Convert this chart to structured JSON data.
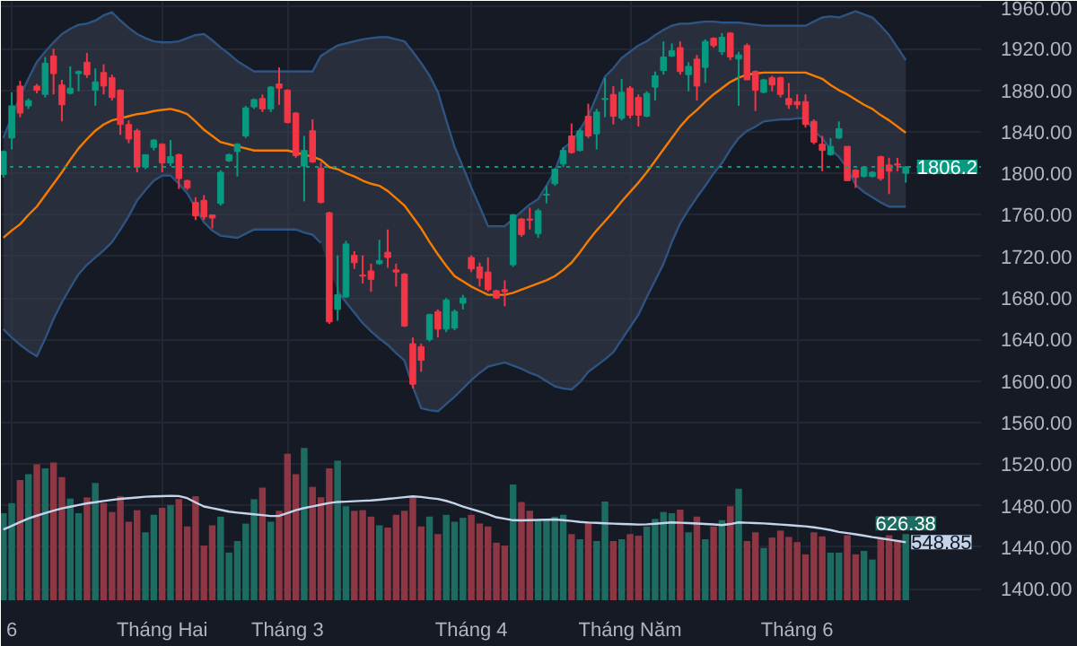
{
  "chart_data": {
    "type": "candlestick",
    "categories": [
      null,
      "6",
      null,
      null,
      null,
      null,
      null,
      null,
      null,
      null,
      null,
      null,
      null,
      null,
      null,
      null,
      null,
      null,
      null,
      "Tháng Hai",
      null,
      null,
      null,
      null,
      null,
      null,
      null,
      null,
      null,
      null,
      null,
      null,
      null,
      null,
      "Tháng 3",
      null,
      null,
      null,
      null,
      null,
      null,
      null,
      null,
      null,
      null,
      null,
      null,
      null,
      null,
      null,
      null,
      null,
      null,
      null,
      null,
      null,
      "Tháng 4",
      null,
      null,
      null,
      null,
      null,
      null,
      null,
      null,
      null,
      null,
      null,
      null,
      null,
      null,
      null,
      null,
      null,
      null,
      "Tháng Năm",
      null,
      null,
      null,
      null,
      null,
      null,
      null,
      null,
      null,
      null,
      null,
      null,
      null,
      null,
      null,
      null,
      null,
      null,
      null,
      "Tháng 6",
      null,
      null,
      null,
      null,
      null,
      null,
      null,
      null,
      null,
      null,
      null,
      null,
      null
    ],
    "ohlc": [
      [
        1799,
        1822,
        1796,
        1821
      ],
      [
        1834,
        1878,
        1823,
        1865
      ],
      [
        1884,
        1889,
        1854,
        1858
      ],
      [
        1865,
        1872,
        1862,
        1870
      ],
      [
        1884,
        1886,
        1877,
        1880
      ],
      [
        1876,
        1912,
        1873,
        1906
      ],
      [
        1913,
        1920,
        1876,
        1896
      ],
      [
        1885,
        1890,
        1850,
        1866
      ],
      [
        1877,
        1903,
        1876,
        1882
      ],
      [
        1896,
        1899,
        1879,
        1898
      ],
      [
        1907,
        1916,
        1892,
        1895
      ],
      [
        1880,
        1901,
        1865,
        1888
      ],
      [
        1897,
        1905,
        1876,
        1884
      ],
      [
        1892,
        1895,
        1870,
        1873
      ],
      [
        1880,
        1881,
        1837,
        1847
      ],
      [
        1847,
        1851,
        1829,
        1833
      ],
      [
        1841,
        1843,
        1801,
        1806
      ],
      [
        1806,
        1818,
        1804,
        1818
      ],
      [
        1825,
        1833,
        1822,
        1832
      ],
      [
        1828,
        1829,
        1801,
        1810
      ],
      [
        1810,
        1832,
        1807,
        1816
      ],
      [
        1818,
        1819,
        1785,
        1795
      ],
      [
        1793,
        1794,
        1784,
        1786
      ],
      [
        1772,
        1777,
        1755,
        1759
      ],
      [
        1774,
        1779,
        1755,
        1758
      ],
      [
        1760,
        1760,
        1747,
        1757
      ],
      [
        1771,
        1803,
        1769,
        1801
      ],
      [
        1812,
        1819,
        1811,
        1818
      ],
      [
        1821,
        1829,
        1797,
        1828
      ],
      [
        1836,
        1865,
        1834,
        1863
      ],
      [
        1864,
        1872,
        1862,
        1871
      ],
      [
        1872,
        1876,
        1859,
        1862
      ],
      [
        1862,
        1884,
        1859,
        1883
      ],
      [
        1886,
        1902,
        1866,
        1882
      ],
      [
        1880,
        1881,
        1848,
        1849
      ],
      [
        1858,
        1859,
        1815,
        1817
      ],
      [
        1807,
        1836,
        1773,
        1822
      ],
      [
        1841,
        1852,
        1810,
        1811
      ],
      [
        1805,
        1811,
        1771,
        1772
      ],
      [
        1762,
        1763,
        1655,
        1657
      ],
      [
        1669,
        1721,
        1658,
        1683
      ],
      [
        1681,
        1735,
        1680,
        1732
      ],
      [
        1721,
        1725,
        1708,
        1714
      ],
      [
        1702,
        1721,
        1694,
        1701
      ],
      [
        1706,
        1713,
        1686,
        1698
      ],
      [
        1713,
        1736,
        1712,
        1716
      ],
      [
        1724,
        1746,
        1709,
        1719
      ],
      [
        1707,
        1713,
        1691,
        1705
      ],
      [
        1703,
        1704,
        1652,
        1653
      ],
      [
        1636,
        1642,
        1593,
        1597
      ],
      [
        1633,
        1636,
        1609,
        1620
      ],
      [
        1640,
        1665,
        1638,
        1664
      ],
      [
        1667,
        1669,
        1642,
        1650
      ],
      [
        1650,
        1680,
        1647,
        1678
      ],
      [
        1651,
        1669,
        1649,
        1667
      ],
      [
        1675,
        1683,
        1669,
        1680
      ],
      [
        1719,
        1721,
        1705,
        1708
      ],
      [
        1710,
        1714,
        1691,
        1699
      ],
      [
        1705,
        1719,
        1686,
        1688
      ],
      [
        1687,
        1688,
        1679,
        1680
      ],
      [
        1688,
        1697,
        1672,
        1686
      ],
      [
        1712,
        1761,
        1710,
        1760
      ],
      [
        1756,
        1757,
        1739,
        1741
      ],
      [
        1756,
        1767,
        1746,
        1755
      ],
      [
        1742,
        1766,
        1738,
        1764
      ],
      [
        1779,
        1788,
        1771,
        1780
      ],
      [
        1790,
        1805,
        1788,
        1804
      ],
      [
        1809,
        1825,
        1806,
        1822
      ],
      [
        1836,
        1848,
        1819,
        1820
      ],
      [
        1822,
        1843,
        1821,
        1841
      ],
      [
        1855,
        1867,
        1834,
        1836
      ],
      [
        1838,
        1862,
        1823,
        1859
      ],
      [
        1871,
        1892,
        1854,
        1872
      ],
      [
        1876,
        1884,
        1847,
        1855
      ],
      [
        1853,
        1891,
        1851,
        1878
      ],
      [
        1882,
        1884,
        1853,
        1856
      ],
      [
        1873,
        1876,
        1845,
        1856
      ],
      [
        1855,
        1879,
        1854,
        1877
      ],
      [
        1883,
        1898,
        1870,
        1894
      ],
      [
        1899,
        1927,
        1895,
        1912
      ],
      [
        1913,
        1925,
        1912,
        1918
      ],
      [
        1921,
        1927,
        1895,
        1898
      ],
      [
        1895,
        1907,
        1879,
        1903
      ],
      [
        1910,
        1914,
        1870,
        1884
      ],
      [
        1902,
        1929,
        1887,
        1927
      ],
      [
        1930,
        1931,
        1921,
        1923
      ],
      [
        1917,
        1935,
        1914,
        1931
      ],
      [
        1935,
        1936,
        1909,
        1912
      ],
      [
        1910,
        1917,
        1865,
        1914
      ],
      [
        1923,
        1925,
        1890,
        1890
      ],
      [
        1898,
        1899,
        1860,
        1880
      ],
      [
        1878,
        1891,
        1877,
        1890
      ],
      [
        1892,
        1894,
        1879,
        1885
      ],
      [
        1892,
        1893,
        1873,
        1876
      ],
      [
        1872,
        1887,
        1862,
        1866
      ],
      [
        1869,
        1876,
        1862,
        1866
      ],
      [
        1869,
        1876,
        1844,
        1847
      ],
      [
        1850,
        1852,
        1828,
        1830
      ],
      [
        1828,
        1836,
        1802,
        1822
      ],
      [
        1818,
        1834,
        1817,
        1826
      ],
      [
        1834,
        1850,
        1833,
        1843
      ],
      [
        1826,
        1826,
        1793,
        1793
      ],
      [
        1803,
        1804,
        1786,
        1796
      ],
      [
        1797,
        1807,
        1796,
        1806
      ],
      [
        1797,
        1802,
        1796,
        1801
      ],
      [
        1816,
        1817,
        1793,
        1795
      ],
      [
        1808,
        1815,
        1780,
        1802
      ],
      [
        1809,
        1815,
        1802,
        1808
      ],
      [
        1800,
        1807,
        1791,
        1806.2
      ]
    ],
    "colors": [
      "#089981",
      "#089981",
      "#f23645",
      "#089981",
      "#f23645",
      "#089981",
      "#f23645",
      "#f23645",
      "#089981",
      "#089981",
      "#f23645",
      "#089981",
      "#f23645",
      "#f23645",
      "#f23645",
      "#f23645",
      "#f23645",
      "#089981",
      "#089981",
      "#f23645",
      "#089981",
      "#f23645",
      "#f23645",
      "#f23645",
      "#f23645",
      "#f23645",
      "#089981",
      "#089981",
      "#089981",
      "#089981",
      "#089981",
      "#f23645",
      "#089981",
      "#f23645",
      "#f23645",
      "#f23645",
      "#089981",
      "#f23645",
      "#f23645",
      "#f23645",
      "#089981",
      "#089981",
      "#f23645",
      "#f23645",
      "#f23645",
      "#089981",
      "#f23645",
      "#f23645",
      "#f23645",
      "#f23645",
      "#f23645",
      "#089981",
      "#f23645",
      "#089981",
      "#089981",
      "#089981",
      "#f23645",
      "#f23645",
      "#f23645",
      "#f23645",
      "#f23645",
      "#089981",
      "#f23645",
      "#f23645",
      "#089981",
      "#089981",
      "#089981",
      "#089981",
      "#f23645",
      "#089981",
      "#f23645",
      "#089981",
      "#089981",
      "#f23645",
      "#089981",
      "#f23645",
      "#f23645",
      "#089981",
      "#089981",
      "#089981",
      "#089981",
      "#f23645",
      "#089981",
      "#f23645",
      "#089981",
      "#f23645",
      "#089981",
      "#f23645",
      "#089981",
      "#f23645",
      "#f23645",
      "#089981",
      "#f23645",
      "#f23645",
      "#f23645",
      "#f23645",
      "#f23645",
      "#f23645",
      "#f23645",
      "#089981",
      "#089981",
      "#f23645",
      "#f23645",
      "#089981",
      "#089981",
      "#f23645",
      "#f23645",
      "#f23645",
      "#089981"
    ],
    "ylim": [
      1389,
      1966
    ],
    "yticks": [
      {
        "value": 1400,
        "label": "1400.00"
      },
      {
        "value": 1440,
        "label": "1440.00"
      },
      {
        "value": 1480,
        "label": "1480.00"
      },
      {
        "value": 1520,
        "label": "1520.00"
      },
      {
        "value": 1560,
        "label": "1560.00"
      },
      {
        "value": 1600,
        "label": "1600.00"
      },
      {
        "value": 1640,
        "label": "1640.00"
      },
      {
        "value": 1680,
        "label": "1680.00"
      },
      {
        "value": 1720,
        "label": "1720.00"
      },
      {
        "value": 1760,
        "label": "1760.00"
      },
      {
        "value": 1800,
        "label": "1800.00"
      },
      {
        "value": 1840,
        "label": "1840.00"
      },
      {
        "value": 1880,
        "label": "1880.00"
      },
      {
        "value": 1920,
        "label": "1920.00"
      },
      {
        "value": 1960,
        "label": "1960.00"
      }
    ],
    "y2lim": [
      0,
      5670
    ],
    "grid": true,
    "series": [
      {
        "type": "bar",
        "axis": "y2",
        "values": [
          824,
          918,
          1137,
          1192,
          1286,
          1247,
          1302,
          1165,
          962,
          824,
          973,
          1110,
          918,
          835,
          984,
          742,
          852,
          643,
          808,
          874,
          901,
          956,
          698,
          984,
          517,
          709,
          791,
          451,
          560,
          725,
          956,
          1066,
          742,
          846,
          1385,
          1192,
          1440,
          1072,
          973,
          1247,
          1319,
          890,
          846,
          852,
          791,
          709,
          687,
          808,
          846,
          973,
          698,
          791,
          626,
          808,
          742,
          780,
          808,
          725,
          698,
          544,
          517,
          1094,
          929,
          846,
          764,
          764,
          791,
          808,
          626,
          577,
          742,
          560,
          934,
          560,
          577,
          626,
          610,
          698,
          769,
          835,
          824,
          857,
          643,
          791,
          577,
          698,
          758,
          890,
          1055,
          560,
          643,
          495,
          593,
          659,
          599,
          550,
          434,
          643,
          604,
          451,
          451,
          615,
          434,
          467,
          385,
          588,
          615,
          571,
          626.38
        ],
        "colors": [
          "#1d6b61",
          "#1d6b61",
          "#8c3743",
          "#1d6b61",
          "#8c3743",
          "#1d6b61",
          "#8c3743",
          "#8c3743",
          "#1d6b61",
          "#1d6b61",
          "#8c3743",
          "#1d6b61",
          "#8c3743",
          "#8c3743",
          "#8c3743",
          "#8c3743",
          "#8c3743",
          "#1d6b61",
          "#1d6b61",
          "#8c3743",
          "#1d6b61",
          "#8c3743",
          "#8c3743",
          "#8c3743",
          "#8c3743",
          "#8c3743",
          "#1d6b61",
          "#1d6b61",
          "#1d6b61",
          "#1d6b61",
          "#1d6b61",
          "#8c3743",
          "#1d6b61",
          "#8c3743",
          "#8c3743",
          "#8c3743",
          "#1d6b61",
          "#8c3743",
          "#8c3743",
          "#8c3743",
          "#1d6b61",
          "#1d6b61",
          "#8c3743",
          "#8c3743",
          "#8c3743",
          "#1d6b61",
          "#8c3743",
          "#8c3743",
          "#8c3743",
          "#8c3743",
          "#8c3743",
          "#1d6b61",
          "#8c3743",
          "#1d6b61",
          "#1d6b61",
          "#1d6b61",
          "#8c3743",
          "#8c3743",
          "#8c3743",
          "#8c3743",
          "#8c3743",
          "#1d6b61",
          "#8c3743",
          "#8c3743",
          "#1d6b61",
          "#1d6b61",
          "#1d6b61",
          "#1d6b61",
          "#8c3743",
          "#1d6b61",
          "#8c3743",
          "#1d6b61",
          "#1d6b61",
          "#8c3743",
          "#1d6b61",
          "#8c3743",
          "#8c3743",
          "#1d6b61",
          "#1d6b61",
          "#1d6b61",
          "#1d6b61",
          "#8c3743",
          "#1d6b61",
          "#8c3743",
          "#1d6b61",
          "#8c3743",
          "#1d6b61",
          "#8c3743",
          "#1d6b61",
          "#8c3743",
          "#8c3743",
          "#1d6b61",
          "#8c3743",
          "#8c3743",
          "#8c3743",
          "#8c3743",
          "#8c3743",
          "#8c3743",
          "#8c3743",
          "#1d6b61",
          "#1d6b61",
          "#8c3743",
          "#8c3743",
          "#1d6b61",
          "#1d6b61",
          "#8c3743",
          "#8c3743",
          "#8c3743",
          "#1d6b61"
        ],
        "value_labels": [
          null,
          null,
          null,
          null,
          null,
          null,
          null,
          null,
          null,
          null,
          null,
          null,
          null,
          null,
          null,
          null,
          null,
          null,
          null,
          null,
          null,
          null,
          null,
          null,
          null,
          null,
          null,
          null,
          null,
          null,
          null,
          null,
          null,
          null,
          null,
          null,
          null,
          null,
          null,
          null,
          null,
          null,
          null,
          null,
          null,
          null,
          null,
          null,
          null,
          null,
          null,
          null,
          null,
          null,
          null,
          null,
          null,
          null,
          null,
          null,
          null,
          null,
          null,
          null,
          null,
          null,
          null,
          null,
          null,
          null,
          null,
          null,
          null,
          null,
          null,
          null,
          null,
          null,
          null,
          null,
          null,
          null,
          null,
          null,
          null,
          null,
          null,
          null,
          null,
          null,
          null,
          null,
          null,
          null,
          null,
          null,
          null,
          null,
          null,
          null,
          null,
          null,
          null,
          null,
          null,
          null,
          null,
          null,
          "626.38"
        ]
      },
      {
        "type": "line",
        "axis": "y2",
        "color": "#c3d3ea",
        "values": [
          670,
          704,
          739,
          773,
          800,
          824,
          848,
          869,
          885,
          901,
          917,
          927,
          939,
          950,
          959,
          966,
          972,
          979,
          982,
          985,
          988,
          986,
          966,
          925,
          887,
          871,
          855,
          838,
          829,
          821,
          813,
          805,
          797,
          798,
          825,
          852,
          872,
          888,
          904,
          920,
          930,
          933,
          937,
          941,
          944,
          951,
          959,
          967,
          975,
          983,
          977,
          967,
          958,
          940,
          915,
          886,
          863,
          839,
          814,
          785,
          771,
          757,
          755,
          757,
          760,
          762,
          764,
          758,
          750,
          741,
          735,
          732,
          728,
          725,
          722,
          719,
          716,
          718,
          724,
          730,
          736,
          733,
          730,
          726,
          722,
          717,
          711,
          721,
          736,
          733,
          730,
          727,
          722,
          716,
          711,
          705,
          699,
          690,
          678,
          664,
          646,
          636,
          624,
          611,
          597,
          586,
          574,
          561,
          548.85
        ],
        "value_labels": [
          null,
          null,
          null,
          null,
          null,
          null,
          null,
          null,
          null,
          null,
          null,
          null,
          null,
          null,
          null,
          null,
          null,
          null,
          null,
          null,
          null,
          null,
          null,
          null,
          null,
          null,
          null,
          null,
          null,
          null,
          null,
          null,
          null,
          null,
          null,
          null,
          null,
          null,
          null,
          null,
          null,
          null,
          null,
          null,
          null,
          null,
          null,
          null,
          null,
          null,
          null,
          null,
          null,
          null,
          null,
          null,
          null,
          null,
          null,
          null,
          null,
          null,
          null,
          null,
          null,
          null,
          null,
          null,
          null,
          null,
          null,
          null,
          null,
          null,
          null,
          null,
          null,
          null,
          null,
          null,
          null,
          null,
          null,
          null,
          null,
          null,
          null,
          null,
          null,
          null,
          null,
          null,
          null,
          null,
          null,
          null,
          null,
          null,
          null,
          null,
          null,
          null,
          null,
          null,
          null,
          null,
          null,
          null,
          "548.85"
        ]
      },
      {
        "type": "line",
        "color": "#2a5c94",
        "values": [
          1834,
          1854,
          1874,
          1891,
          1907,
          1917,
          1926,
          1934,
          1939,
          1943,
          1944,
          1947,
          1952,
          1955,
          1947,
          1940,
          1934,
          1930,
          1927,
          1926,
          1926,
          1927,
          1930,
          1933,
          1934,
          1928,
          1921,
          1915,
          1908,
          1903,
          1898,
          1898,
          1898,
          1898,
          1898,
          1898,
          1898,
          1898,
          1913,
          1918,
          1923,
          1925,
          1927,
          1929,
          1930,
          1931,
          1931,
          1929,
          1927,
          1917,
          1906,
          1894,
          1878,
          1851,
          1825,
          1806,
          1786,
          1768,
          1749,
          1749,
          1749,
          1756,
          1763,
          1770,
          1775,
          1788,
          1802,
          1824,
          1830,
          1842,
          1855,
          1874,
          1893,
          1901,
          1911,
          1917,
          1923,
          1927,
          1933,
          1938,
          1942,
          1944,
          1944,
          1945,
          1946,
          1946,
          1945,
          1945,
          1945,
          1944,
          1943,
          1942,
          1942,
          1942,
          1942,
          1942,
          1942,
          1946,
          1950,
          1951,
          1950,
          1953,
          1956,
          1953,
          1950,
          1942,
          1933,
          1921,
          1909
        ]
      },
      {
        "type": "line",
        "color": "#2a5c94",
        "values": [
          1650,
          1642,
          1635,
          1629,
          1624,
          1641,
          1660,
          1676,
          1690,
          1703,
          1712,
          1719,
          1726,
          1734,
          1746,
          1759,
          1774,
          1784,
          1793,
          1798,
          1798,
          1790,
          1781,
          1767,
          1753,
          1745,
          1740,
          1739,
          1738,
          1742,
          1746,
          1746,
          1746,
          1746,
          1746,
          1746,
          1743,
          1741,
          1733,
          null,
          1687,
          1676,
          1666,
          1656,
          1648,
          1641,
          1635,
          1627,
          1620,
          1595,
          1574,
          1572,
          1571,
          1578,
          1585,
          1593,
          1601,
          1608,
          1614,
          1616,
          1618,
          1615,
          1612,
          1608,
          1605,
          1600,
          1595,
          1593,
          1592,
          1599,
          1609,
          1615,
          1621,
          1628,
          1640,
          1652,
          1664,
          1681,
          1697,
          1713,
          1734,
          1752,
          1765,
          1777,
          1788,
          1800,
          1810,
          1823,
          1834,
          1841,
          1845,
          1850,
          1851,
          1852,
          1852,
          1853,
          1853,
          1841,
          1834,
          1823,
          1816,
          1805,
          1789,
          1782,
          1777,
          1772,
          1768,
          1768,
          1768
        ]
      },
      {
        "type": "line",
        "color": "#f57c00",
        "values": [
          1738,
          1745,
          1751,
          1760,
          1768,
          1779,
          1790,
          1801,
          1813,
          1824,
          1833,
          1841,
          1847,
          1851,
          1853,
          1855,
          1857,
          1858,
          1860,
          1861,
          1862,
          1860,
          1857,
          1850,
          1842,
          1836,
          1830,
          1828,
          1826,
          1824,
          1822,
          1822,
          1822,
          1822,
          1822,
          1820,
          1818,
          1816,
          1813,
          1806,
          1804,
          1800,
          1797,
          1793,
          1790,
          1788,
          1783,
          1776,
          1769,
          1758,
          1747,
          1734,
          1722,
          1711,
          1701,
          1696,
          1691,
          1687,
          1683,
          1683,
          1683,
          1685,
          1688,
          1691,
          1694,
          1697,
          1701,
          1707,
          1714,
          1724,
          1735,
          1745,
          1754,
          1763,
          1773,
          1782,
          1791,
          1801,
          1812,
          1823,
          1834,
          1845,
          1854,
          1861,
          1869,
          1876,
          1882,
          1888,
          1892,
          1895,
          1896,
          1897,
          1897,
          1897,
          1897,
          1897,
          1897,
          1894,
          1891,
          1885,
          1880,
          1876,
          1871,
          1866,
          1862,
          1856,
          1851,
          1845,
          1839
        ],
        "upper": [
          1834,
          1854,
          1874,
          1891,
          1907,
          1917,
          1926,
          1934,
          1939,
          1943,
          1944,
          1947,
          1952,
          1955,
          1947,
          1940,
          1934,
          1930,
          1927,
          1926,
          1926,
          1927,
          1930,
          1933,
          1934,
          1928,
          1921,
          1915,
          1908,
          1903,
          1898,
          1898,
          1898,
          1898,
          1898,
          1898,
          1898,
          1898,
          1913,
          1918,
          1923,
          1925,
          1927,
          1929,
          1930,
          1931,
          1931,
          1929,
          1927,
          1917,
          1906,
          1894,
          1878,
          1851,
          1825,
          1806,
          1786,
          1768,
          1749,
          1749,
          1749,
          1756,
          1763,
          1770,
          1775,
          1788,
          1802,
          1824,
          1830,
          1842,
          1855,
          1874,
          1893,
          1901,
          1911,
          1917,
          1923,
          1927,
          1933,
          1938,
          1942,
          1944,
          1944,
          1945,
          1946,
          1946,
          1945,
          1945,
          1945,
          1944,
          1943,
          1942,
          1942,
          1942,
          1942,
          1942,
          1942,
          1946,
          1950,
          1951,
          1950,
          1953,
          1956,
          1953,
          1950,
          1942,
          1933,
          1921,
          1909
        ],
        "lower": [
          1650,
          1642,
          1635,
          1629,
          1624,
          1641,
          1660,
          1676,
          1690,
          1703,
          1712,
          1719,
          1726,
          1734,
          1746,
          1759,
          1774,
          1784,
          1793,
          1798,
          1798,
          1790,
          1781,
          1767,
          1753,
          1745,
          1740,
          1739,
          1738,
          1742,
          1746,
          1746,
          1746,
          1746,
          1746,
          1746,
          1743,
          1741,
          1733,
          1707,
          1687,
          1676,
          1666,
          1656,
          1648,
          1641,
          1635,
          1627,
          1620,
          1595,
          1574,
          1572,
          1571,
          1578,
          1585,
          1593,
          1601,
          1608,
          1614,
          1616,
          1618,
          1615,
          1612,
          1608,
          1605,
          1600,
          1595,
          1593,
          1592,
          1599,
          1609,
          1615,
          1621,
          1628,
          1640,
          1652,
          1664,
          1681,
          1697,
          1713,
          1734,
          1752,
          1765,
          1777,
          1788,
          1800,
          1810,
          1823,
          1834,
          1841,
          1845,
          1850,
          1851,
          1852,
          1852,
          1853,
          1853,
          1841,
          1834,
          1823,
          1816,
          1805,
          1789,
          1782,
          1777,
          1772,
          1768,
          1768,
          1768
        ]
      }
    ],
    "ref_lines": [
      {
        "axis": "y",
        "value": 1806.2,
        "label": "1806.2",
        "color": "#089981",
        "line_style": "dotted"
      }
    ]
  }
}
